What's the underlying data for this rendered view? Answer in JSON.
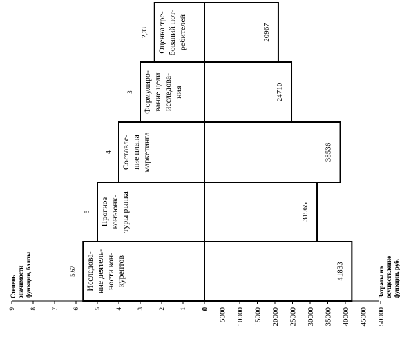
{
  "chart_data": {
    "type": "bar",
    "orientation": "rotated-ccw-90",
    "categories": [
      "Исследова-\nние деятель-\nности кон-\nкурентов",
      "Прогноз\nконъюнк-\nтуры рынка",
      "Составле-\nние плана\nмаркетинга",
      "Формулиро-\nвание цели\nисследова-\nния",
      "Оценка тре-\nбований пот-\nребителей"
    ],
    "series": [
      {
        "name": "Степень значимости функции, баллы",
        "values": [
          5.67,
          5,
          4,
          3,
          2.33
        ],
        "labels": [
          "5,67",
          "5",
          "4",
          "3",
          "2,33"
        ]
      },
      {
        "name": "Затраты на осуществление функции, руб.",
        "values": [
          41833,
          31965,
          38536,
          24710,
          20967
        ],
        "labels": [
          "41833",
          "31965",
          "38536",
          "24710",
          "20967"
        ]
      }
    ],
    "axes": {
      "importance": {
        "label": "Степень значимости функции, баллы",
        "ticks": [
          "0",
          "1",
          "2",
          "3",
          "4",
          "5",
          "6",
          "7",
          "8",
          "9"
        ],
        "range": [
          0,
          9
        ]
      },
      "cost": {
        "label": "Затраты на осуществление функции, руб.",
        "ticks": [
          "0",
          "5000",
          "10000",
          "15000",
          "20000",
          "25000",
          "30000",
          "35000",
          "40000",
          "45000",
          "50000"
        ],
        "range": [
          0,
          50000
        ]
      }
    },
    "grid": false,
    "legend": "none"
  }
}
